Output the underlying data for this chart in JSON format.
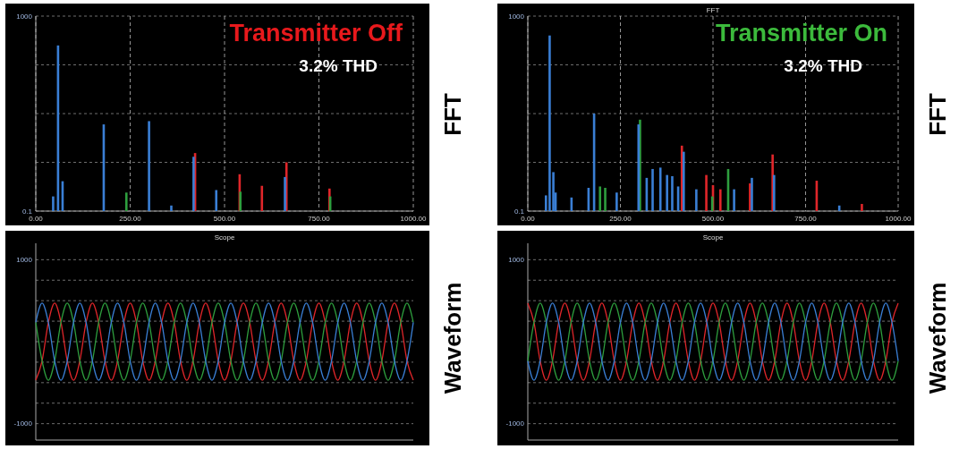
{
  "chart_data": [
    {
      "type": "bar",
      "subtitle": "Transmitter Off",
      "annotations": [
        "3.2% THD"
      ],
      "y2label": "FFT",
      "log": "y",
      "grid": true,
      "xlim": [
        0,
        1000
      ],
      "xticks": [
        {
          "value": 0,
          "label": "0.00"
        },
        {
          "value": 250,
          "label": "250.00"
        },
        {
          "value": 500,
          "label": "500.00"
        },
        {
          "value": 750,
          "label": "750.00"
        },
        {
          "value": 1000,
          "label": "1000.00"
        }
      ],
      "ylim": [
        0.1,
        1000
      ],
      "yticks": [
        {
          "value": 0.1,
          "label": "0.1"
        },
        {
          "value": 1,
          "label": null
        },
        {
          "value": 10,
          "label": null
        },
        {
          "value": 100,
          "label": null
        },
        {
          "value": 1000,
          "label": "1000"
        }
      ],
      "series": [
        {
          "color": "#e0262a",
          "x": [
            422,
            540,
            599,
            664,
            778
          ],
          "values": [
            1.55,
            0.57,
            0.33,
            1,
            0.29
          ]
        },
        {
          "color": "#2e9e3e",
          "x": [
            240,
            542,
            780
          ],
          "values": [
            0.24,
            0.25,
            0.2
          ]
        },
        {
          "color": "#3a7fd5",
          "x": [
            46,
            59,
            71,
            180,
            300,
            359,
            418,
            478,
            660
          ],
          "values": [
            0.2,
            250,
            0.41,
            6,
            7,
            0.13,
            1.3,
            0.27,
            0.5
          ]
        }
      ]
    },
    {
      "type": "bar",
      "title": "FFT",
      "subtitle": "Transmitter On",
      "annotations": [
        "3.2% THD"
      ],
      "y2label": "FFT",
      "log": "y",
      "grid": true,
      "xlim": [
        0,
        1000
      ],
      "xticks": [
        {
          "value": 0,
          "label": "0.00"
        },
        {
          "value": 250,
          "label": "250.00"
        },
        {
          "value": 500,
          "label": "500.00"
        },
        {
          "value": 750,
          "label": "750.00"
        },
        {
          "value": 1000,
          "label": "1000.00"
        }
      ],
      "ylim": [
        0.1,
        1000
      ],
      "yticks": [
        {
          "value": 0.1,
          "label": "0.1"
        },
        {
          "value": 1,
          "label": null
        },
        {
          "value": 10,
          "label": null
        },
        {
          "value": 100,
          "label": null
        },
        {
          "value": 1000,
          "label": "1000"
        }
      ],
      "series": [
        {
          "color": "#e0262a",
          "x": [
            416,
            482,
            500,
            520,
            600,
            661,
            780,
            902
          ],
          "values": [
            2.2,
            0.55,
            0.34,
            0.28,
            0.37,
            1.45,
            0.42,
            0.14
          ]
        },
        {
          "color": "#2e9e3e",
          "x": [
            195,
            209,
            303,
            498,
            541
          ],
          "values": [
            0.32,
            0.3,
            7.5,
            0.2,
            0.73
          ]
        },
        {
          "color": "#3a7fd5",
          "x": [
            49,
            59,
            69,
            75,
            118,
            164,
            179,
            240,
            299,
            321,
            337,
            358,
            376,
            390,
            406,
            421,
            455,
            557,
            605,
            665,
            841
          ],
          "values": [
            0.21,
            400,
            0.63,
            0.24,
            0.19,
            0.3,
            10,
            0.24,
            6,
            0.48,
            0.73,
            0.78,
            0.55,
            0.52,
            0.32,
            1.65,
            0.28,
            0.28,
            0.48,
            0.55,
            0.13
          ]
        }
      ]
    },
    {
      "type": "line",
      "title": "Scope",
      "y2label": "Waveform",
      "grid": "y",
      "ylim": [
        -1200,
        1200
      ],
      "yticks": [
        {
          "value": -1000,
          "label": "-1000"
        },
        {
          "value": -750,
          "label": null
        },
        {
          "value": -500,
          "label": null
        },
        {
          "value": -250,
          "label": null
        },
        {
          "value": 0,
          "label": null
        },
        {
          "value": 250,
          "label": null
        },
        {
          "value": 500,
          "label": null
        },
        {
          "value": 750,
          "label": null
        },
        {
          "value": 1000,
          "label": "1000"
        }
      ],
      "categories": [
        null,
        null,
        null,
        null,
        null,
        null,
        null,
        null,
        null,
        null,
        null,
        null,
        null,
        null,
        null,
        null,
        null,
        null,
        null,
        null,
        null,
        null,
        null,
        null,
        null,
        null,
        null,
        null,
        null,
        null,
        null,
        null,
        null,
        null,
        null,
        null,
        null,
        null,
        null,
        null,
        null,
        null,
        null,
        null,
        null,
        null,
        null,
        null,
        null,
        null,
        null,
        null,
        null,
        null,
        null,
        null,
        null,
        null,
        null,
        null,
        null
      ],
      "series": [
        {
          "color": "#e0262a",
          "values": [
            -470,
            -235,
            235,
            470,
            235,
            -235,
            -470,
            -235,
            235,
            470,
            235,
            -235,
            -470,
            -235,
            235,
            470,
            235,
            -235,
            -470,
            -235,
            235,
            470,
            235,
            -235,
            -470,
            -235,
            235,
            470,
            235,
            -235,
            -470,
            -235,
            235,
            470,
            235,
            -235,
            -470,
            -235,
            235,
            470,
            235,
            -235,
            -470,
            -235,
            235,
            470,
            235,
            -235,
            -470,
            -235,
            235,
            470,
            235,
            -235,
            -470,
            -235,
            235,
            470,
            235,
            -235,
            -470
          ]
        },
        {
          "color": "#2e9e3e",
          "values": [
            235,
            -235,
            -470,
            -235,
            235,
            470,
            235,
            -235,
            -470,
            -235,
            235,
            470,
            235,
            -235,
            -470,
            -235,
            235,
            470,
            235,
            -235,
            -470,
            -235,
            235,
            470,
            235,
            -235,
            -470,
            -235,
            235,
            470,
            235,
            -235,
            -470,
            -235,
            235,
            470,
            235,
            -235,
            -470,
            -235,
            235,
            470,
            235,
            -235,
            -470,
            -235,
            235,
            470,
            235,
            -235,
            -470,
            -235,
            235,
            470,
            235,
            -235,
            -470,
            -235,
            235,
            470,
            235
          ]
        },
        {
          "color": "#3a7fd5",
          "values": [
            235,
            470,
            235,
            -235,
            -470,
            -235,
            235,
            470,
            235,
            -235,
            -470,
            -235,
            235,
            470,
            235,
            -235,
            -470,
            -235,
            235,
            470,
            235,
            -235,
            -470,
            -235,
            235,
            470,
            235,
            -235,
            -470,
            -235,
            235,
            470,
            235,
            -235,
            -470,
            -235,
            235,
            470,
            235,
            -235,
            -470,
            -235,
            235,
            470,
            235,
            -235,
            -470,
            -235,
            235,
            470,
            235,
            -235,
            -470,
            -235,
            235,
            470,
            235,
            -235,
            -470,
            -235,
            235
          ]
        }
      ]
    },
    {
      "type": "line",
      "title": "Scope",
      "y2label": "Waveform",
      "grid": "y",
      "ylim": [
        -1200,
        1200
      ],
      "yticks": [
        {
          "value": -1000,
          "label": "-1000"
        },
        {
          "value": -750,
          "label": null
        },
        {
          "value": -500,
          "label": null
        },
        {
          "value": -250,
          "label": null
        },
        {
          "value": 0,
          "label": null
        },
        {
          "value": 250,
          "label": null
        },
        {
          "value": 500,
          "label": null
        },
        {
          "value": 750,
          "label": null
        },
        {
          "value": 1000,
          "label": "1000"
        }
      ],
      "categories": [
        null,
        null,
        null,
        null,
        null,
        null,
        null,
        null,
        null,
        null,
        null,
        null,
        null,
        null,
        null,
        null,
        null,
        null,
        null,
        null,
        null,
        null,
        null,
        null,
        null,
        null,
        null,
        null,
        null,
        null,
        null,
        null,
        null,
        null,
        null,
        null,
        null,
        null,
        null,
        null,
        null,
        null,
        null,
        null,
        null,
        null,
        null,
        null,
        null,
        null,
        null,
        null,
        null,
        null,
        null,
        null,
        null,
        null,
        null,
        null,
        null
      ],
      "series": [
        {
          "color": "#e0262a",
          "values": [
            470,
            235,
            -235,
            -470,
            -235,
            235,
            470,
            235,
            -235,
            -470,
            -235,
            235,
            470,
            235,
            -235,
            -470,
            -235,
            235,
            470,
            235,
            -235,
            -470,
            -235,
            235,
            470,
            235,
            -235,
            -470,
            -235,
            235,
            470,
            235,
            -235,
            -470,
            -235,
            235,
            470,
            235,
            -235,
            -470,
            -235,
            235,
            470,
            235,
            -235,
            -470,
            -235,
            235,
            470,
            235,
            -235,
            -470,
            -235,
            235,
            470,
            235,
            -235,
            -470,
            -235,
            235,
            470
          ]
        },
        {
          "color": "#2e9e3e",
          "values": [
            -235,
            235,
            470,
            235,
            -235,
            -470,
            -235,
            235,
            470,
            235,
            -235,
            -470,
            -235,
            235,
            470,
            235,
            -235,
            -470,
            -235,
            235,
            470,
            235,
            -235,
            -470,
            -235,
            235,
            470,
            235,
            -235,
            -470,
            -235,
            235,
            470,
            235,
            -235,
            -470,
            -235,
            235,
            470,
            235,
            -235,
            -470,
            -235,
            235,
            470,
            235,
            -235,
            -470,
            -235,
            235,
            470,
            235,
            -235,
            -470,
            -235,
            235,
            470,
            235,
            -235,
            -470,
            -235
          ]
        },
        {
          "color": "#3a7fd5",
          "values": [
            -235,
            -470,
            -235,
            235,
            470,
            235,
            -235,
            -470,
            -235,
            235,
            470,
            235,
            -235,
            -470,
            -235,
            235,
            470,
            235,
            -235,
            -470,
            -235,
            235,
            470,
            235,
            -235,
            -470,
            -235,
            235,
            470,
            235,
            -235,
            -470,
            -235,
            235,
            470,
            235,
            -235,
            -470,
            -235,
            235,
            470,
            235,
            -235,
            -470,
            -235,
            235,
            470,
            235,
            -235,
            -470,
            -235,
            235,
            470,
            235,
            -235,
            -470,
            -235,
            235,
            470,
            235,
            -235
          ]
        }
      ]
    }
  ]
}
